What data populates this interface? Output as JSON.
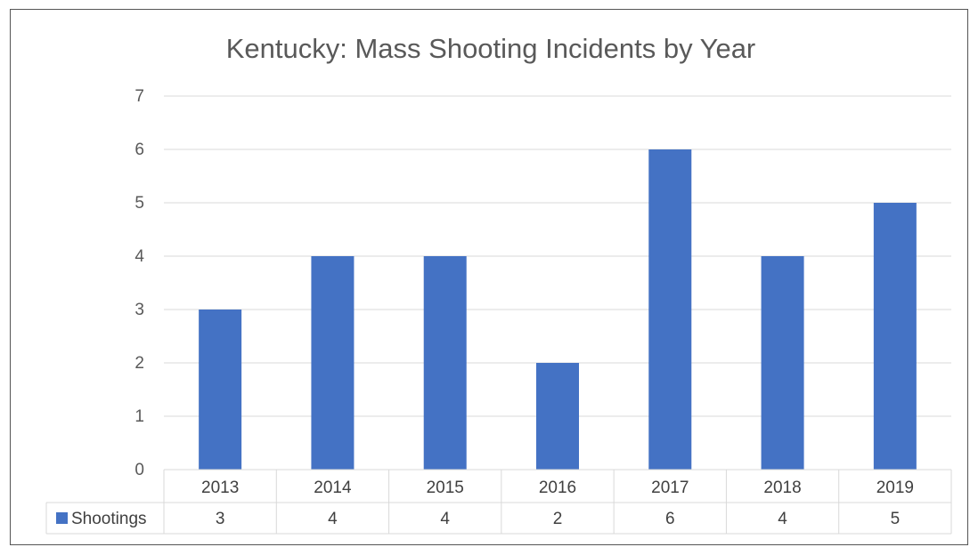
{
  "chart_data": {
    "type": "bar",
    "title": "Kentucky: Mass Shooting Incidents by Year",
    "categories": [
      "2013",
      "2014",
      "2015",
      "2016",
      "2017",
      "2018",
      "2019"
    ],
    "series": [
      {
        "name": "Shootings",
        "values": [
          3,
          4,
          4,
          2,
          6,
          4,
          5
        ],
        "color": "#4472c4"
      }
    ],
    "ylim": [
      0,
      7
    ],
    "yticks": [
      0,
      1,
      2,
      3,
      4,
      5,
      6,
      7
    ],
    "grid": true,
    "legend": "data-table"
  }
}
